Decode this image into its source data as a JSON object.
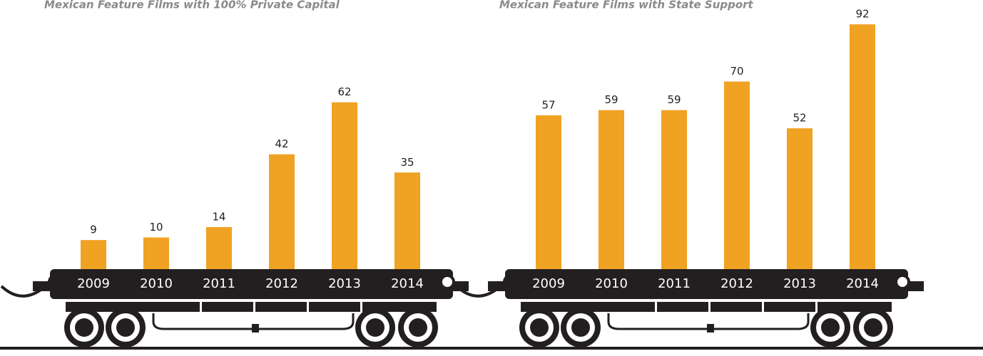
{
  "chart_data": [
    {
      "type": "bar",
      "title": "Mexican Feature Films with 100% Private Capital",
      "categories": [
        "2009",
        "2010",
        "2011",
        "2012",
        "2013",
        "2014"
      ],
      "values": [
        9,
        10,
        14,
        42,
        62,
        35
      ],
      "color": "#f0a223"
    },
    {
      "type": "bar",
      "title": "Mexican Feature Films with State Support",
      "categories": [
        "2009",
        "2010",
        "2011",
        "2012",
        "2013",
        "2014"
      ],
      "values": [
        57,
        59,
        59,
        70,
        52,
        92
      ],
      "color": "#f0a223"
    }
  ]
}
